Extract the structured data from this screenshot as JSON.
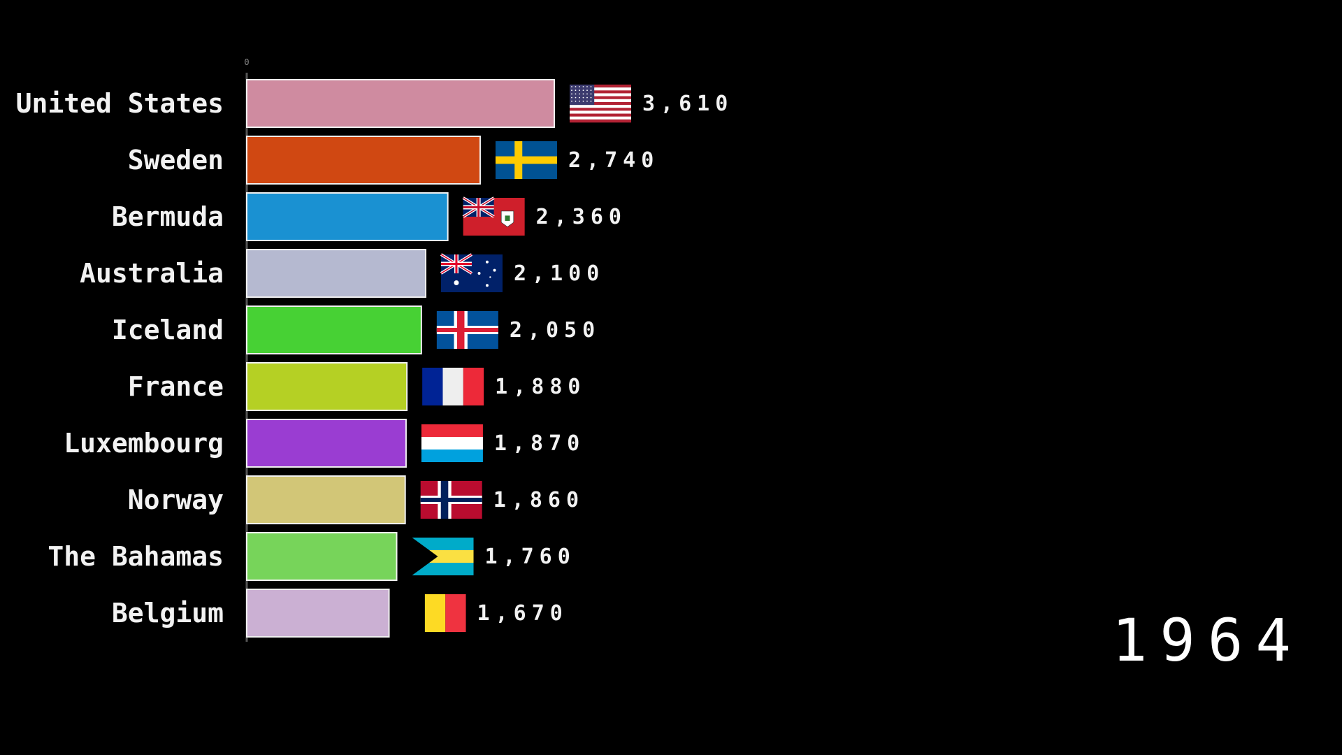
{
  "chart_data": {
    "type": "bar",
    "orientation": "horizontal",
    "title": "",
    "xlabel": "",
    "ylabel": "",
    "xlim": [
      0,
      3610
    ],
    "x_ticks": [
      "0"
    ],
    "period_label": "1964",
    "grid": false,
    "legend": "none",
    "categories": [
      "United States",
      "Sweden",
      "Bermuda",
      "Australia",
      "Iceland",
      "France",
      "Luxembourg",
      "Norway",
      "The Bahamas",
      "Belgium"
    ],
    "values": [
      3610,
      2740,
      2360,
      2100,
      2050,
      1880,
      1870,
      1860,
      1760,
      1670
    ],
    "value_labels": [
      "3,610",
      "2,740",
      "2,360",
      "2,100",
      "2,050",
      "1,880",
      "1,870",
      "1,860",
      "1,760",
      "1,670"
    ],
    "colors": [
      "#cf8ba0",
      "#d04812",
      "#1a91d2",
      "#b5b9d0",
      "#47d134",
      "#b5d024",
      "#9a3dd2",
      "#d2c677",
      "#77d45a",
      "#cbb0d3"
    ],
    "flags": [
      "us-flag-icon",
      "sweden-flag-icon",
      "bermuda-flag-icon",
      "australia-flag-icon",
      "iceland-flag-icon",
      "france-flag-icon",
      "luxembourg-flag-icon",
      "norway-flag-icon",
      "bahamas-flag-icon",
      "belgium-flag-icon"
    ]
  }
}
